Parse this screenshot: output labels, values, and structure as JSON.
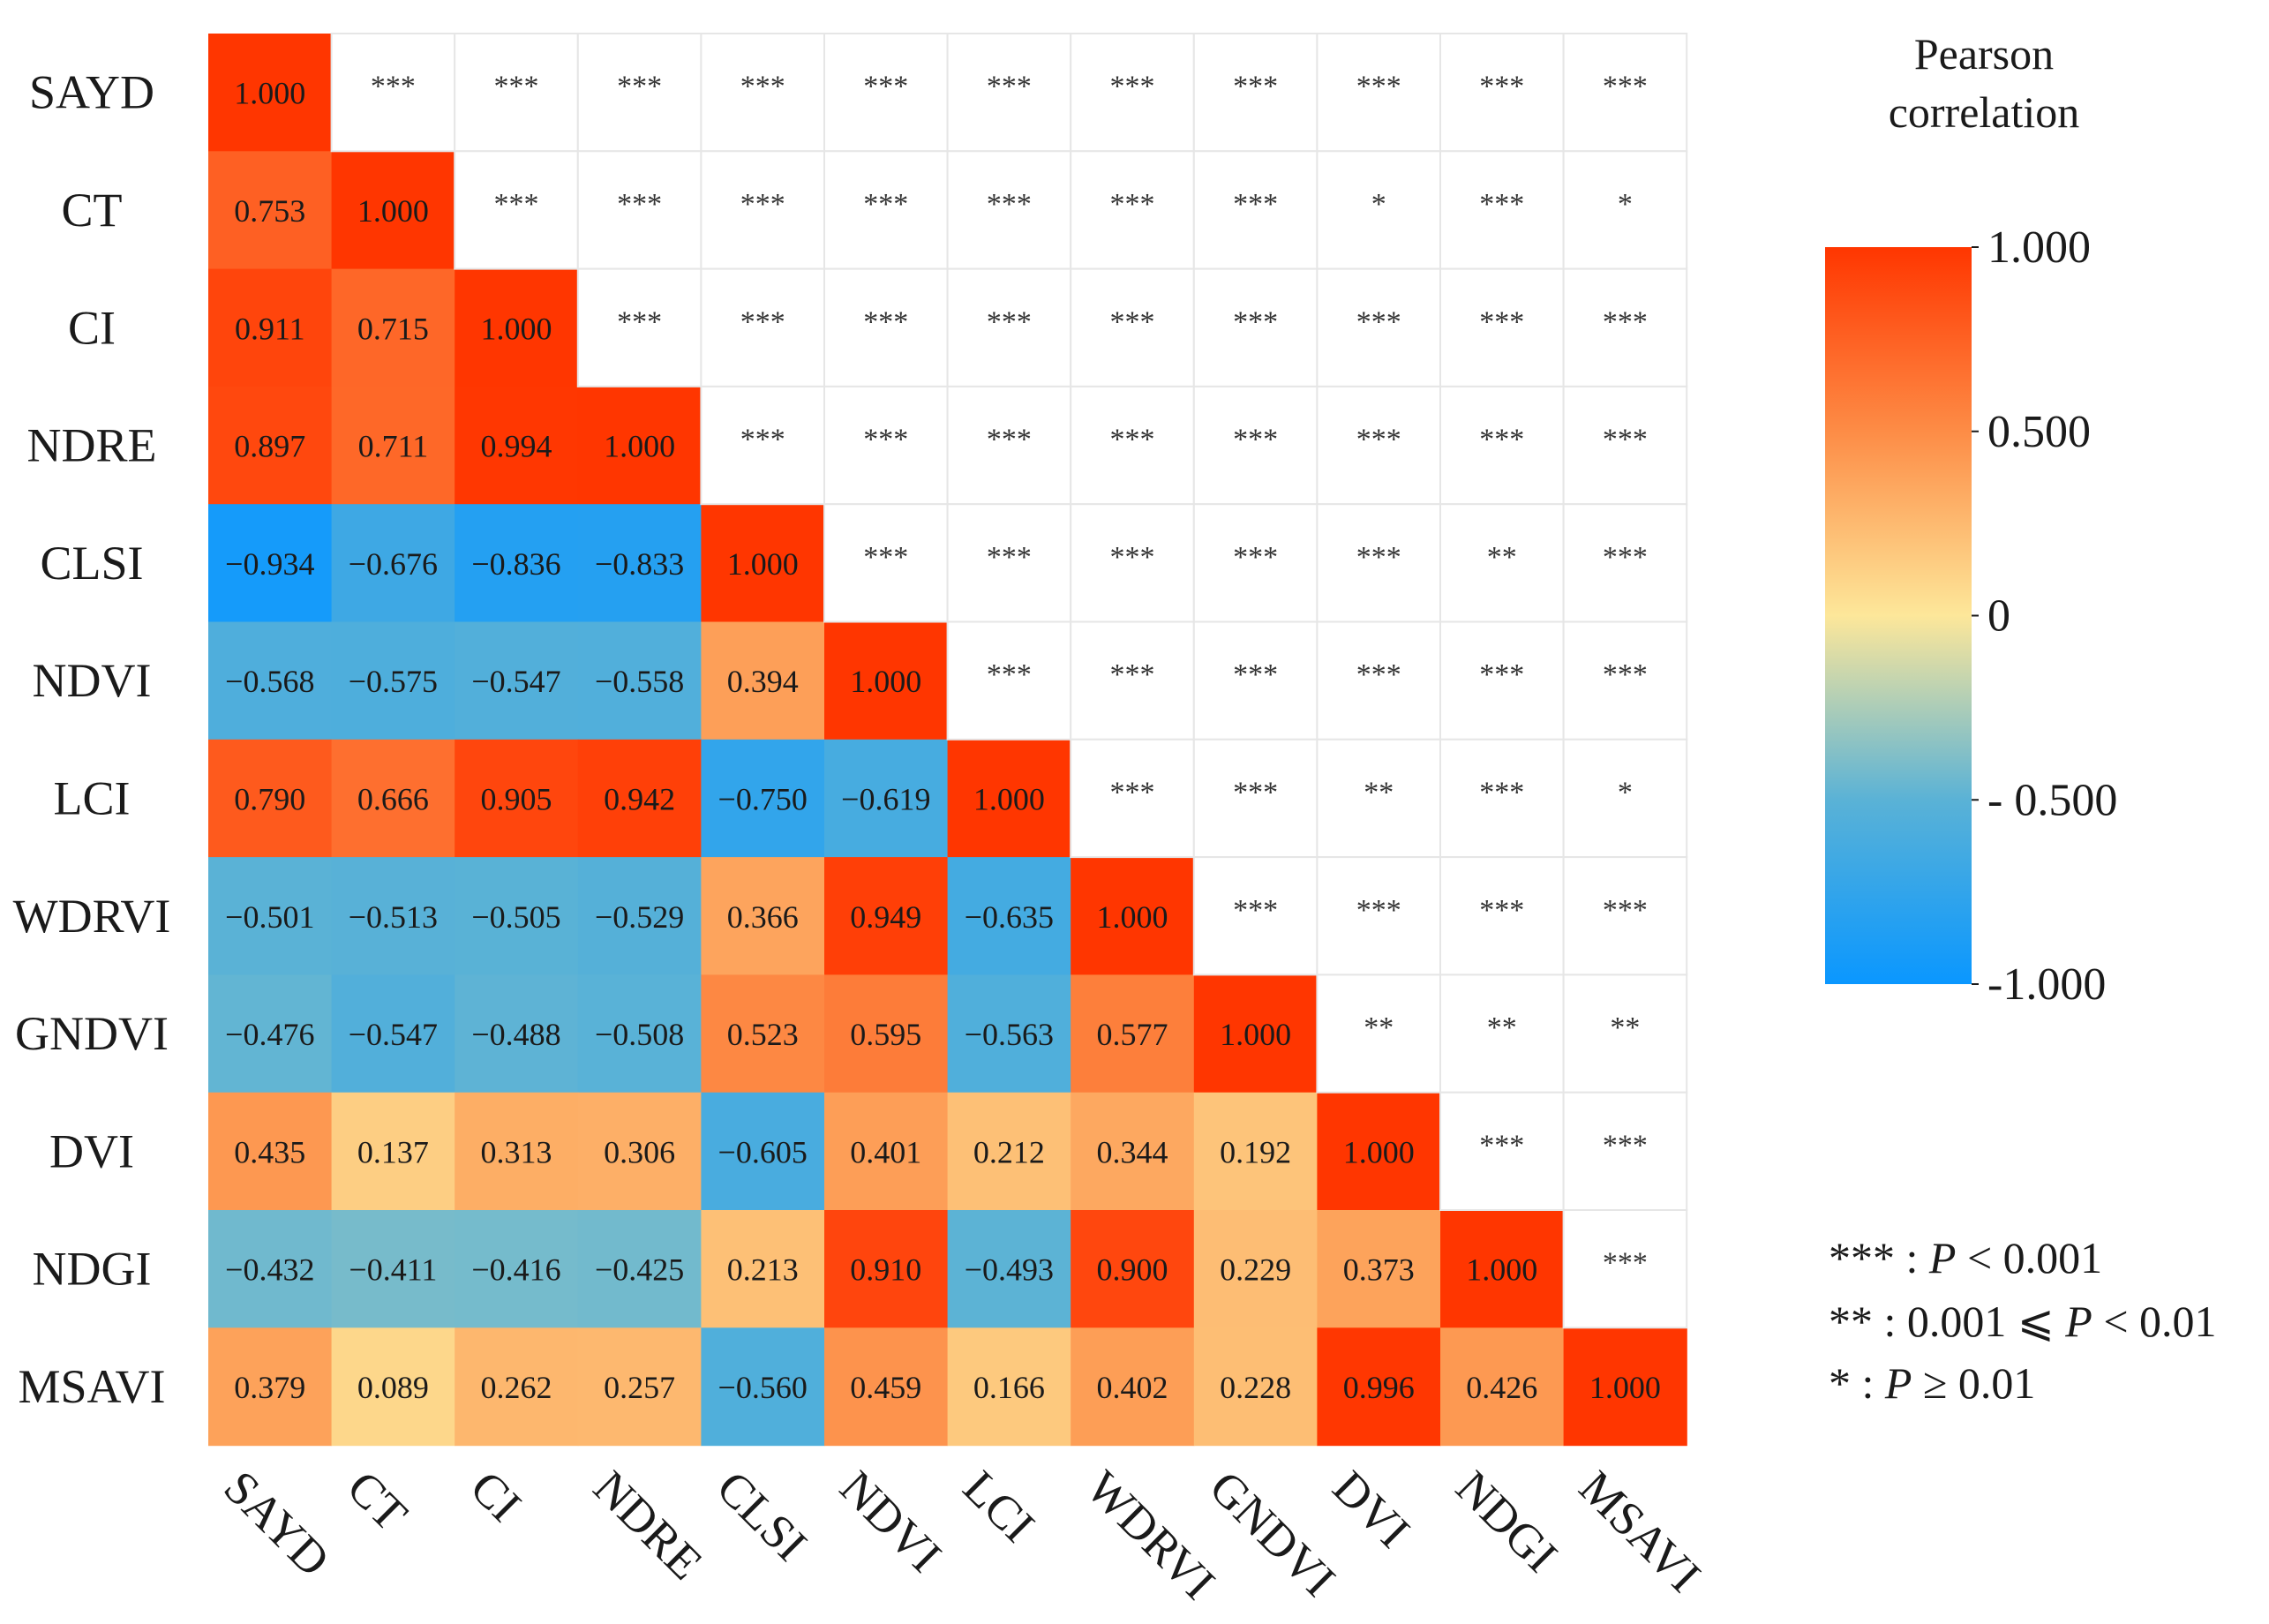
{
  "chart_data": {
    "type": "heatmap",
    "variables": [
      "SAYD",
      "CT",
      "CI",
      "NDRE",
      "CLSI",
      "NDVI",
      "LCI",
      "WDRVI",
      "GNDVI",
      "DVI",
      "NDGI",
      "MSAVI"
    ],
    "lower_triangle_values": [
      [
        1.0
      ],
      [
        0.753,
        1.0
      ],
      [
        0.911,
        0.715,
        1.0
      ],
      [
        0.897,
        0.711,
        0.994,
        1.0
      ],
      [
        -0.934,
        -0.676,
        -0.836,
        -0.833,
        1.0
      ],
      [
        -0.568,
        -0.575,
        -0.547,
        -0.558,
        0.394,
        1.0
      ],
      [
        0.79,
        0.666,
        0.905,
        0.942,
        -0.75,
        -0.619,
        1.0
      ],
      [
        -0.501,
        -0.513,
        -0.505,
        -0.529,
        0.366,
        0.949,
        -0.635,
        1.0
      ],
      [
        -0.476,
        -0.547,
        -0.488,
        -0.508,
        0.523,
        0.595,
        -0.563,
        0.577,
        1.0
      ],
      [
        0.435,
        0.137,
        0.313,
        0.306,
        -0.605,
        0.401,
        0.212,
        0.344,
        0.192,
        1.0
      ],
      [
        -0.432,
        -0.411,
        -0.416,
        -0.425,
        0.213,
        0.91,
        -0.493,
        0.9,
        0.229,
        0.373,
        1.0
      ],
      [
        0.379,
        0.089,
        0.262,
        0.257,
        -0.56,
        0.459,
        0.166,
        0.402,
        0.228,
        0.996,
        0.426,
        1.0
      ]
    ],
    "upper_triangle_significance": [
      [
        "***",
        "***",
        "***",
        "***",
        "***",
        "***",
        "***",
        "***",
        "***",
        "***",
        "***"
      ],
      [
        "***",
        "***",
        "***",
        "***",
        "***",
        "***",
        "***",
        "*",
        "***",
        "*"
      ],
      [
        "***",
        "***",
        "***",
        "***",
        "***",
        "***",
        "***",
        "***",
        "***"
      ],
      [
        "***",
        "***",
        "***",
        "***",
        "***",
        "***",
        "***",
        "***"
      ],
      [
        "***",
        "***",
        "***",
        "***",
        "***",
        "**",
        "***"
      ],
      [
        "***",
        "***",
        "***",
        "***",
        "***",
        "***"
      ],
      [
        "***",
        "***",
        "**",
        "***",
        "*"
      ],
      [
        "***",
        "***",
        "***",
        "***"
      ],
      [
        "**",
        "**",
        "**"
      ],
      [
        "***",
        "***"
      ],
      [
        "***"
      ]
    ],
    "value_range": [
      -1,
      1
    ],
    "colorbar": {
      "title_lines": [
        "Pearson",
        "correlation"
      ],
      "ticks": [
        {
          "value": 1,
          "label": "1.000"
        },
        {
          "value": 0.5,
          "label": "0.500"
        },
        {
          "value": 0,
          "label": "0"
        },
        {
          "value": -0.5,
          "label": "- 0.500"
        },
        {
          "value": -1,
          "label": "-1.000"
        }
      ],
      "colors": {
        "neg_end": "#0a97ff",
        "neg_mid": "#5ab2d6",
        "neutral": "#fde79a",
        "pos_mid": "#fd8c46",
        "pos_end": "#ff3600"
      }
    },
    "significance_legend": [
      {
        "symbol": "***",
        "separator": " : ",
        "p": "P",
        "rest": " < 0.001"
      },
      {
        "symbol": "**",
        "separator": " : ",
        "pre": "0.001 ⩽ ",
        "p": "P",
        "rest": " < 0.01"
      },
      {
        "symbol": "*",
        "separator": " : ",
        "p": "P",
        "rest": " ≥ 0.01"
      }
    ],
    "grid_color": "#e6e6e6"
  }
}
